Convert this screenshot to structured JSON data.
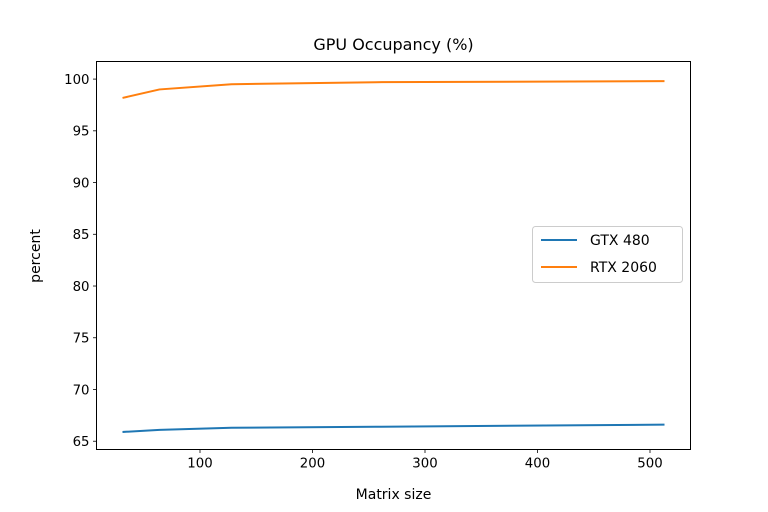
{
  "chart_data": {
    "type": "line",
    "title": "GPU Occupancy (%)",
    "xlabel": "Matrix size",
    "ylabel": "percent",
    "xlim": [
      8,
      536
    ],
    "ylim": [
      64.2,
      101.7
    ],
    "x_ticks": [
      100,
      200,
      300,
      400,
      500
    ],
    "y_ticks": [
      65,
      70,
      75,
      80,
      85,
      90,
      95,
      100
    ],
    "grid": false,
    "legend_position": "center-right",
    "series": [
      {
        "name": "GTX 480",
        "color": "#1f77b4",
        "x": [
          32,
          64,
          128,
          256,
          512
        ],
        "y": [
          65.9,
          66.1,
          66.3,
          66.4,
          66.6
        ]
      },
      {
        "name": "RTX 2060",
        "color": "#ff7f0e",
        "x": [
          32,
          64,
          128,
          256,
          512
        ],
        "y": [
          98.2,
          99.0,
          99.5,
          99.7,
          99.8
        ]
      }
    ]
  }
}
